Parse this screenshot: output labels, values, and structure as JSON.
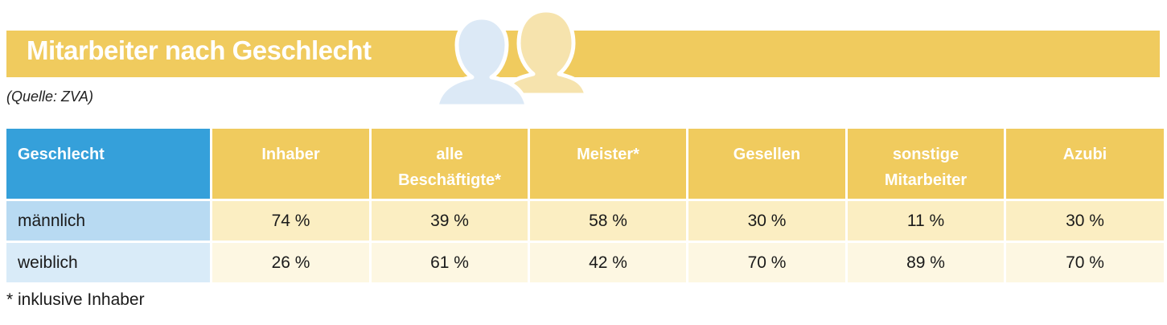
{
  "title": "Mitarbeiter nach Geschlecht",
  "source": "(Quelle: ZVA)",
  "table": {
    "header_first": "Geschlecht",
    "columns": [
      {
        "line1": "Inhaber",
        "line2": ""
      },
      {
        "line1": "alle",
        "line2": "Beschäftigte*"
      },
      {
        "line1": "Meister*",
        "line2": ""
      },
      {
        "line1": "Gesellen",
        "line2": ""
      },
      {
        "line1": "sonstige",
        "line2": "Mitarbeiter"
      },
      {
        "line1": "Azubi",
        "line2": ""
      }
    ],
    "rows": [
      {
        "label": "männlich",
        "values": [
          "74 %",
          "39 %",
          "58 %",
          "30 %",
          "11 %",
          "30 %"
        ]
      },
      {
        "label": "weiblich",
        "values": [
          "26 %",
          "61 %",
          "42 %",
          "70 %",
          "89 %",
          "70 %"
        ]
      }
    ]
  },
  "footnote": "* inklusive Inhaber",
  "icons": {
    "male": "person-silhouette-icon",
    "female": "woman-silhouette-icon"
  },
  "colors": {
    "title_band": "#f0cb5e",
    "header_blue": "#35a0da",
    "male_row_label": "#b8daf2",
    "male_row_values": "#fbeec2",
    "female_row_label": "#d9ebf8",
    "female_row_values": "#fdf7e2",
    "male_icon": "#dce9f6",
    "female_icon": "#f6e3ad"
  }
}
